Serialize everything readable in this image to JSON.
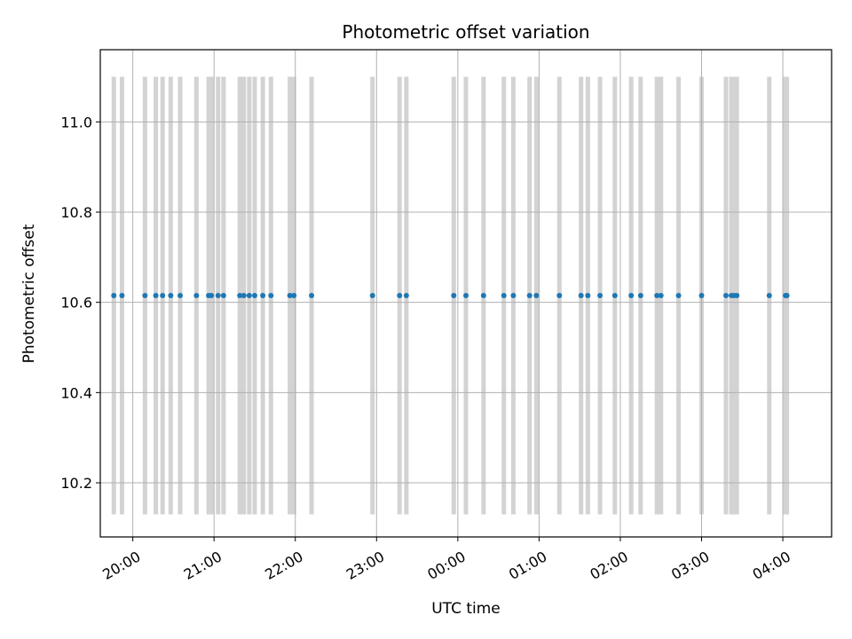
{
  "chart_data": {
    "type": "scatter",
    "title": "Photometric offset variation",
    "xlabel": "UTC time",
    "ylabel": "Photometric offset",
    "x_axis_type": "time",
    "x_range": [
      "19:36",
      "04:36"
    ],
    "x_ticks": [
      "20:00",
      "21:00",
      "22:00",
      "23:00",
      "00:00",
      "01:00",
      "02:00",
      "03:00",
      "04:00"
    ],
    "ylim": [
      10.08,
      11.16
    ],
    "y_ticks": [
      10.2,
      10.4,
      10.6,
      10.8,
      11.0
    ],
    "y_tick_labels": [
      "10.2",
      "10.4",
      "10.6",
      "10.8",
      "11.0"
    ],
    "grid": true,
    "point_color": "#1f77b4",
    "band_color": "#d3d3d3",
    "exposure_bands_y": [
      10.13,
      11.1
    ],
    "series": [
      {
        "x": [
          "19:46",
          "19:52",
          "20:09",
          "20:17",
          "20:22",
          "20:28",
          "20:35",
          "20:47",
          "20:56",
          "20:58",
          "21:03",
          "21:07",
          "21:19",
          "21:22",
          "21:26",
          "21:30",
          "21:36",
          "21:42",
          "21:56",
          "21:59",
          "22:12",
          "22:57",
          "23:17",
          "23:22",
          "23:57",
          "24:06",
          "24:19",
          "24:34",
          "24:41",
          "24:53",
          "24:58",
          "25:15",
          "25:31",
          "25:36",
          "25:45",
          "25:56",
          "26:08",
          "26:15",
          "26:27",
          "26:30",
          "26:43",
          "27:00",
          "27:18",
          "27:22",
          "27:24",
          "27:26",
          "27:50",
          "28:02",
          "28:03"
        ],
        "y": [
          10.615,
          10.615,
          10.615,
          10.615,
          10.615,
          10.615,
          10.615,
          10.615,
          10.615,
          10.615,
          10.615,
          10.615,
          10.615,
          10.615,
          10.615,
          10.615,
          10.615,
          10.615,
          10.615,
          10.615,
          10.615,
          10.615,
          10.615,
          10.615,
          10.615,
          10.615,
          10.615,
          10.615,
          10.615,
          10.615,
          10.615,
          10.615,
          10.615,
          10.615,
          10.615,
          10.615,
          10.615,
          10.615,
          10.615,
          10.615,
          10.615,
          10.615,
          10.615,
          10.615,
          10.615,
          10.615,
          10.615,
          10.615,
          10.615
        ]
      }
    ]
  }
}
